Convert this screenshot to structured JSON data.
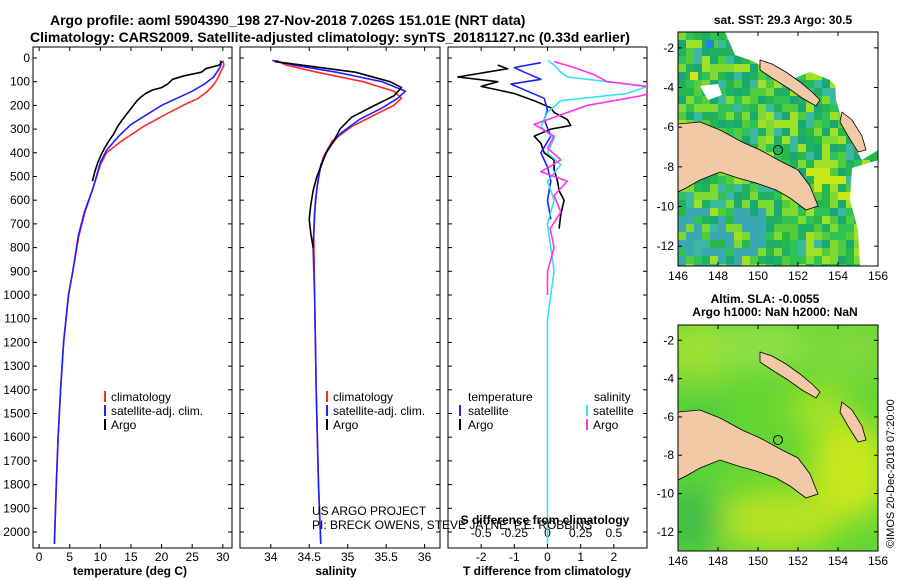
{
  "title_line1": "Argo profile: aoml 5904390_198 27-Nov-2018 7.026S 151.01E (NRT data)",
  "title_line2": "Climatology: CARS2009. Satellite-adjusted climatology: synTS_20181127.nc (0.33d earlier)",
  "project_line1": "US ARGO PROJECT",
  "project_line2": "PI: BRECK OWENS, STEVE JAYNE, P.E. ROBBINS",
  "watermark": "©IMOS 20-Dec-2018 07:20:00",
  "colors": {
    "climatology": "#ff2a2a",
    "satellite": "#2020ff",
    "argo": "#000000",
    "sal_satellite": "#33e0ee",
    "sal_argo": "#ff33ee"
  },
  "chart_data": [
    {
      "id": "temperature",
      "type": "line",
      "xlabel": "temperature (deg C)",
      "ylabel": "",
      "xlim": [
        -1,
        31.5
      ],
      "ylim": [
        2070,
        0
      ],
      "xticks": [
        0,
        5,
        10,
        15,
        20,
        25,
        30
      ],
      "yticks": [
        0,
        100,
        200,
        300,
        400,
        500,
        600,
        700,
        800,
        900,
        1000,
        1100,
        1200,
        1300,
        1400,
        1500,
        1600,
        1700,
        1800,
        1900,
        2000
      ],
      "legend": [
        "climatology",
        "satellite-adj. clim.",
        "Argo"
      ],
      "series": [
        {
          "name": "climatology",
          "color_key": "climatology",
          "points": [
            [
              30,
              10
            ],
            [
              30.2,
              30
            ],
            [
              29.8,
              50
            ],
            [
              29.3,
              80
            ],
            [
              28.6,
              110
            ],
            [
              27.5,
              140
            ],
            [
              26,
              170
            ],
            [
              23.5,
              200
            ],
            [
              20.5,
              240
            ],
            [
              17,
              290
            ],
            [
              13.5,
              350
            ],
            [
              11,
              400
            ],
            [
              10,
              450
            ],
            [
              8.8,
              550
            ],
            [
              7.5,
              650
            ],
            [
              6.5,
              750
            ],
            [
              5.5,
              900
            ],
            [
              4.8,
              1000
            ],
            [
              4,
              1200
            ],
            [
              3.5,
              1400
            ],
            [
              3.1,
              1600
            ],
            [
              2.8,
              1800
            ],
            [
              2.5,
              2050
            ]
          ]
        },
        {
          "name": "satellite-adj. clim.",
          "color_key": "satellite",
          "points": [
            [
              29.6,
              10
            ],
            [
              29.7,
              30
            ],
            [
              29.3,
              50
            ],
            [
              28.5,
              80
            ],
            [
              27,
              110
            ],
            [
              25,
              140
            ],
            [
              22.5,
              170
            ],
            [
              20,
              200
            ],
            [
              17.5,
              240
            ],
            [
              15,
              280
            ],
            [
              13,
              330
            ],
            [
              11,
              390
            ],
            [
              10,
              440
            ],
            [
              8.8,
              550
            ],
            [
              7.4,
              650
            ],
            [
              6.4,
              750
            ],
            [
              5.5,
              900
            ],
            [
              4.8,
              1000
            ],
            [
              4,
              1200
            ],
            [
              3.5,
              1400
            ],
            [
              3.1,
              1600
            ],
            [
              2.8,
              1800
            ],
            [
              2.5,
              2050
            ]
          ]
        },
        {
          "name": "Argo",
          "color_key": "argo",
          "points": [
            [
              29.9,
              15
            ],
            [
              29.4,
              30
            ],
            [
              27.2,
              45
            ],
            [
              26.5,
              60
            ],
            [
              23.7,
              75
            ],
            [
              21.8,
              90
            ],
            [
              21,
              110
            ],
            [
              20,
              125
            ],
            [
              18.5,
              135
            ],
            [
              17.4,
              150
            ],
            [
              16.6,
              165
            ],
            [
              16,
              180
            ],
            [
              15.4,
              200
            ],
            [
              14.5,
              230
            ],
            [
              13.6,
              260
            ],
            [
              12.8,
              290
            ],
            [
              12.2,
              320
            ],
            [
              11.4,
              350
            ],
            [
              10.7,
              380
            ],
            [
              10.1,
              410
            ],
            [
              9.6,
              440
            ],
            [
              9.1,
              480
            ],
            [
              8.7,
              520
            ]
          ]
        }
      ]
    },
    {
      "id": "salinity",
      "type": "line",
      "xlabel": "salinity",
      "ylabel": "",
      "xlim": [
        33.6,
        36.2
      ],
      "ylim": [
        2070,
        0
      ],
      "xticks": [
        34,
        34.5,
        35,
        35.5,
        36
      ],
      "yticks": [],
      "legend": [
        "climatology",
        "satellite-adj. clim.",
        "Argo"
      ],
      "series": [
        {
          "name": "climatology",
          "color_key": "climatology",
          "points": [
            [
              34.07,
              10
            ],
            [
              34.2,
              30
            ],
            [
              34.6,
              60
            ],
            [
              35.2,
              100
            ],
            [
              35.6,
              140
            ],
            [
              35.7,
              170
            ],
            [
              35.6,
              200
            ],
            [
              35.35,
              240
            ],
            [
              35.05,
              290
            ],
            [
              34.8,
              350
            ],
            [
              34.68,
              420
            ],
            [
              34.62,
              500
            ],
            [
              34.58,
              600
            ],
            [
              34.56,
              750
            ],
            [
              34.57,
              1000
            ],
            [
              34.59,
              1400
            ],
            [
              34.62,
              1800
            ],
            [
              34.65,
              2050
            ]
          ]
        },
        {
          "name": "satellite-adj. clim.",
          "color_key": "satellite",
          "points": [
            [
              34.02,
              10
            ],
            [
              34.3,
              30
            ],
            [
              34.85,
              60
            ],
            [
              35.45,
              100
            ],
            [
              35.75,
              140
            ],
            [
              35.65,
              170
            ],
            [
              35.45,
              210
            ],
            [
              35.15,
              260
            ],
            [
              34.9,
              320
            ],
            [
              34.75,
              380
            ],
            [
              34.65,
              450
            ],
            [
              34.6,
              550
            ],
            [
              34.57,
              650
            ],
            [
              34.55,
              800
            ],
            [
              34.57,
              1000
            ],
            [
              34.59,
              1400
            ],
            [
              34.62,
              1800
            ],
            [
              34.65,
              2050
            ]
          ]
        },
        {
          "name": "Argo",
          "color_key": "argo",
          "points": [
            [
              34.05,
              15
            ],
            [
              34.4,
              30
            ],
            [
              35.1,
              60
            ],
            [
              35.55,
              100
            ],
            [
              35.7,
              125
            ],
            [
              35.6,
              160
            ],
            [
              35.35,
              200
            ],
            [
              35.05,
              250
            ],
            [
              34.9,
              300
            ],
            [
              34.82,
              350
            ],
            [
              34.72,
              400
            ],
            [
              34.66,
              450
            ],
            [
              34.6,
              500
            ],
            [
              34.55,
              560
            ],
            [
              34.52,
              620
            ],
            [
              34.5,
              680
            ],
            [
              34.52,
              740
            ],
            [
              34.55,
              800
            ]
          ]
        }
      ]
    },
    {
      "id": "difference",
      "type": "line",
      "xlabel": "T difference from climatology",
      "xlabel2": "S difference from climatology",
      "xlim": [
        -3,
        3
      ],
      "ylim": [
        2070,
        0
      ],
      "xticks": [
        -2,
        -1,
        0,
        1,
        2
      ],
      "xticks_s": [
        -0.5,
        -0.25,
        0,
        0.25,
        0.5
      ],
      "xticks_s_labels": [
        "-0.5",
        "-0.25",
        "0",
        "0.25",
        "0.5"
      ],
      "legend_left_title": "temperature",
      "legend_right_title": "salinity",
      "legend_left": [
        "satellite",
        "Argo"
      ],
      "legend_right": [
        "satellite",
        "Argo"
      ],
      "series": [
        {
          "name": "T Argo",
          "color_key": "argo",
          "points": [
            [
              -1.5,
              30
            ],
            [
              -1.2,
              45
            ],
            [
              -2.7,
              80
            ],
            [
              -1.5,
              100
            ],
            [
              -2,
              120
            ],
            [
              -1,
              150
            ],
            [
              -0.4,
              180
            ],
            [
              0.1,
              210
            ],
            [
              0.2,
              230
            ],
            [
              0.6,
              260
            ],
            [
              0.7,
              285
            ],
            [
              0.1,
              300
            ],
            [
              -0.4,
              330
            ],
            [
              -0.2,
              360
            ],
            [
              -0.1,
              400
            ],
            [
              0.2,
              430
            ],
            [
              0.2,
              470
            ],
            [
              0.3,
              520
            ],
            [
              0.35,
              560
            ],
            [
              0.5,
              600
            ],
            [
              0.4,
              660
            ],
            [
              0.35,
              720
            ]
          ]
        },
        {
          "name": "T satellite",
          "color_key": "satellite",
          "points": [
            [
              -0.2,
              20
            ],
            [
              -1,
              40
            ],
            [
              -0.7,
              60
            ],
            [
              -0.2,
              90
            ],
            [
              -1.1,
              110
            ],
            [
              -0.6,
              140
            ],
            [
              -0.1,
              170
            ],
            [
              0,
              220
            ],
            [
              -0.1,
              260
            ],
            [
              0.1,
              330
            ],
            [
              -0.2,
              400
            ],
            [
              0,
              460
            ],
            [
              0.1,
              520
            ],
            [
              0,
              600
            ],
            [
              0.1,
              680
            ]
          ]
        },
        {
          "name": "S satellite",
          "color_key": "sal_satellite",
          "points": [
            [
              0,
              10
            ],
            [
              0.05,
              30
            ],
            [
              0.1,
              60
            ],
            [
              0.15,
              80
            ],
            [
              0.75,
              120
            ],
            [
              0.6,
              150
            ],
            [
              0.1,
              180
            ],
            [
              0,
              230
            ],
            [
              -0.05,
              290
            ],
            [
              0.05,
              340
            ],
            [
              0,
              400
            ],
            [
              0.1,
              450
            ],
            [
              0,
              520
            ],
            [
              0.05,
              600
            ],
            [
              0,
              700
            ],
            [
              0.05,
              900
            ],
            [
              0,
              1100
            ],
            [
              0,
              1400
            ],
            [
              0,
              1700
            ],
            [
              0,
              2050
            ]
          ]
        },
        {
          "name": "S Argo",
          "color_key": "sal_argo",
          "points": [
            [
              0.05,
              15
            ],
            [
              0.2,
              40
            ],
            [
              0.35,
              70
            ],
            [
              0.45,
              100
            ],
            [
              0.9,
              130
            ],
            [
              0.7,
              160
            ],
            [
              0.3,
              200
            ],
            [
              0.1,
              240
            ],
            [
              -0.1,
              280
            ],
            [
              0.05,
              330
            ],
            [
              0,
              380
            ],
            [
              0.1,
              430
            ],
            [
              -0.05,
              480
            ],
            [
              0.15,
              520
            ],
            [
              0.05,
              580
            ],
            [
              0.1,
              650
            ],
            [
              0.02,
              720
            ],
            [
              0.05,
              800
            ],
            [
              0,
              900
            ],
            [
              0,
              1000
            ]
          ]
        }
      ]
    },
    {
      "id": "sst_map",
      "type": "heatmap",
      "title": "sat. SST: 29.3 Argo: 30.5",
      "xticks": [
        146,
        148,
        150,
        152,
        154,
        156
      ],
      "yticks": [
        -2,
        -4,
        -6,
        -8,
        -10,
        -12
      ],
      "xlim": [
        146,
        156
      ],
      "ylim": [
        -13,
        -1.2
      ],
      "marker": [
        151.01,
        -7.026
      ]
    },
    {
      "id": "sla_map",
      "type": "heatmap",
      "title": "Altim. SLA: -0.0055",
      "title2": "Argo h1000: NaN h2000: NaN",
      "xticks": [
        146,
        148,
        150,
        152,
        154,
        156
      ],
      "yticks": [
        -2,
        -4,
        -6,
        -8,
        -10,
        -12
      ],
      "xlim": [
        146,
        156
      ],
      "ylim": [
        -13,
        -1.2
      ],
      "marker": [
        151.01,
        -7.026
      ]
    }
  ]
}
